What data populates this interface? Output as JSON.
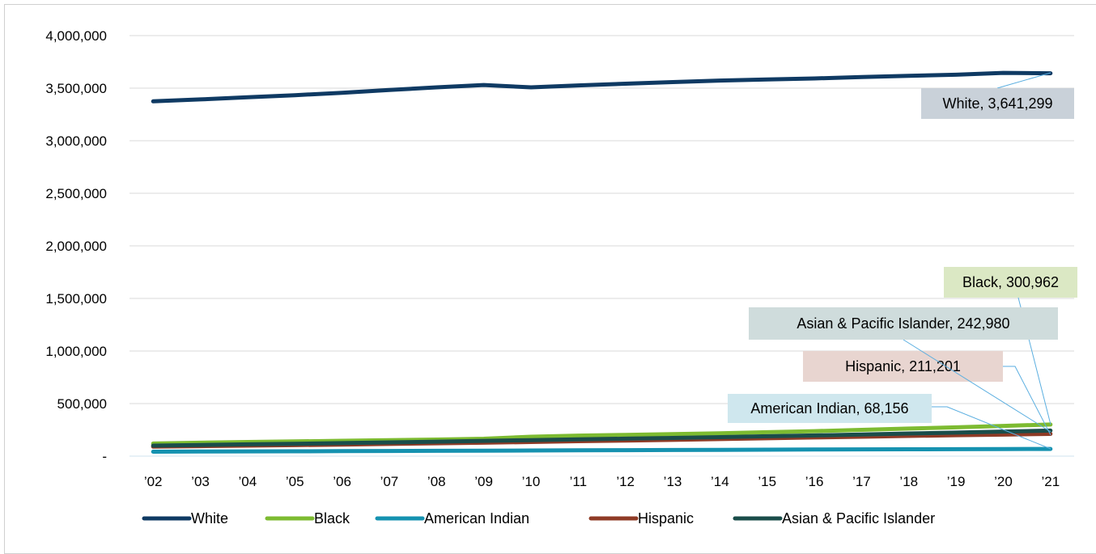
{
  "chart_data": {
    "type": "line",
    "categories": [
      "’02",
      "’03",
      "’04",
      "’05",
      "’06",
      "’07",
      "’08",
      "’09",
      "’10",
      "’11",
      "’12",
      "’13",
      "’14",
      "’15",
      "’16",
      "’17",
      "’18",
      "’19",
      "’20",
      "’21"
    ],
    "ylim": [
      0,
      4000000
    ],
    "yticks": [
      0,
      500000,
      1000000,
      1500000,
      2000000,
      2500000,
      3000000,
      3500000,
      4000000
    ],
    "ytick_labels": [
      "-",
      "500,000",
      "1,000,000",
      "1,500,000",
      "2,000,000",
      "2,500,000",
      "3,000,000",
      "3,500,000",
      "4,000,000"
    ],
    "grid": true,
    "legend_position": "bottom",
    "series": [
      {
        "name": "White",
        "color": "#0f3a63",
        "values": [
          3375000,
          3393000,
          3413000,
          3433000,
          3456000,
          3482000,
          3508000,
          3530000,
          3508000,
          3526000,
          3542000,
          3558000,
          3572000,
          3582000,
          3592000,
          3606000,
          3618000,
          3628000,
          3645000,
          3641299
        ],
        "end_label": "White,  3,641,299",
        "label_color": "#c9d1d9"
      },
      {
        "name": "Black",
        "color": "#7dbb31",
        "values": [
          120000,
          128000,
          135000,
          140000,
          146000,
          152000,
          158000,
          165000,
          185000,
          195000,
          202000,
          210000,
          218000,
          228000,
          238000,
          250000,
          262000,
          274000,
          288000,
          300962
        ],
        "end_label": "Black,  300,962",
        "label_color": "#dbe8c4"
      },
      {
        "name": "American Indian",
        "color": "#1592b0",
        "values": [
          42000,
          43500,
          45000,
          46500,
          48000,
          49500,
          51000,
          52500,
          54000,
          55500,
          57000,
          58500,
          60000,
          61500,
          63000,
          64500,
          65500,
          66500,
          67500,
          68156
        ],
        "end_label": "American Indian,  68,156",
        "label_color": "#cfe7ee"
      },
      {
        "name": "Hispanic",
        "color": "#8f3b26",
        "values": [
          90000,
          95000,
          100000,
          105000,
          110000,
          116000,
          122000,
          128000,
          135000,
          142000,
          148000,
          155000,
          162000,
          170000,
          178000,
          185000,
          192000,
          199000,
          205000,
          211201
        ],
        "end_label": "Hispanic,  211,201",
        "label_color": "#e8d5d0"
      },
      {
        "name": "Asian & Pacific Islander",
        "color": "#1a4d4a",
        "values": [
          100000,
          106000,
          112000,
          118000,
          124000,
          131000,
          138000,
          145000,
          152000,
          159000,
          166000,
          173000,
          181000,
          189000,
          197000,
          206000,
          215000,
          224000,
          234000,
          242980
        ],
        "end_label": "Asian & Pacific Islander,  242,980",
        "label_color": "#cfdcdc"
      }
    ]
  }
}
